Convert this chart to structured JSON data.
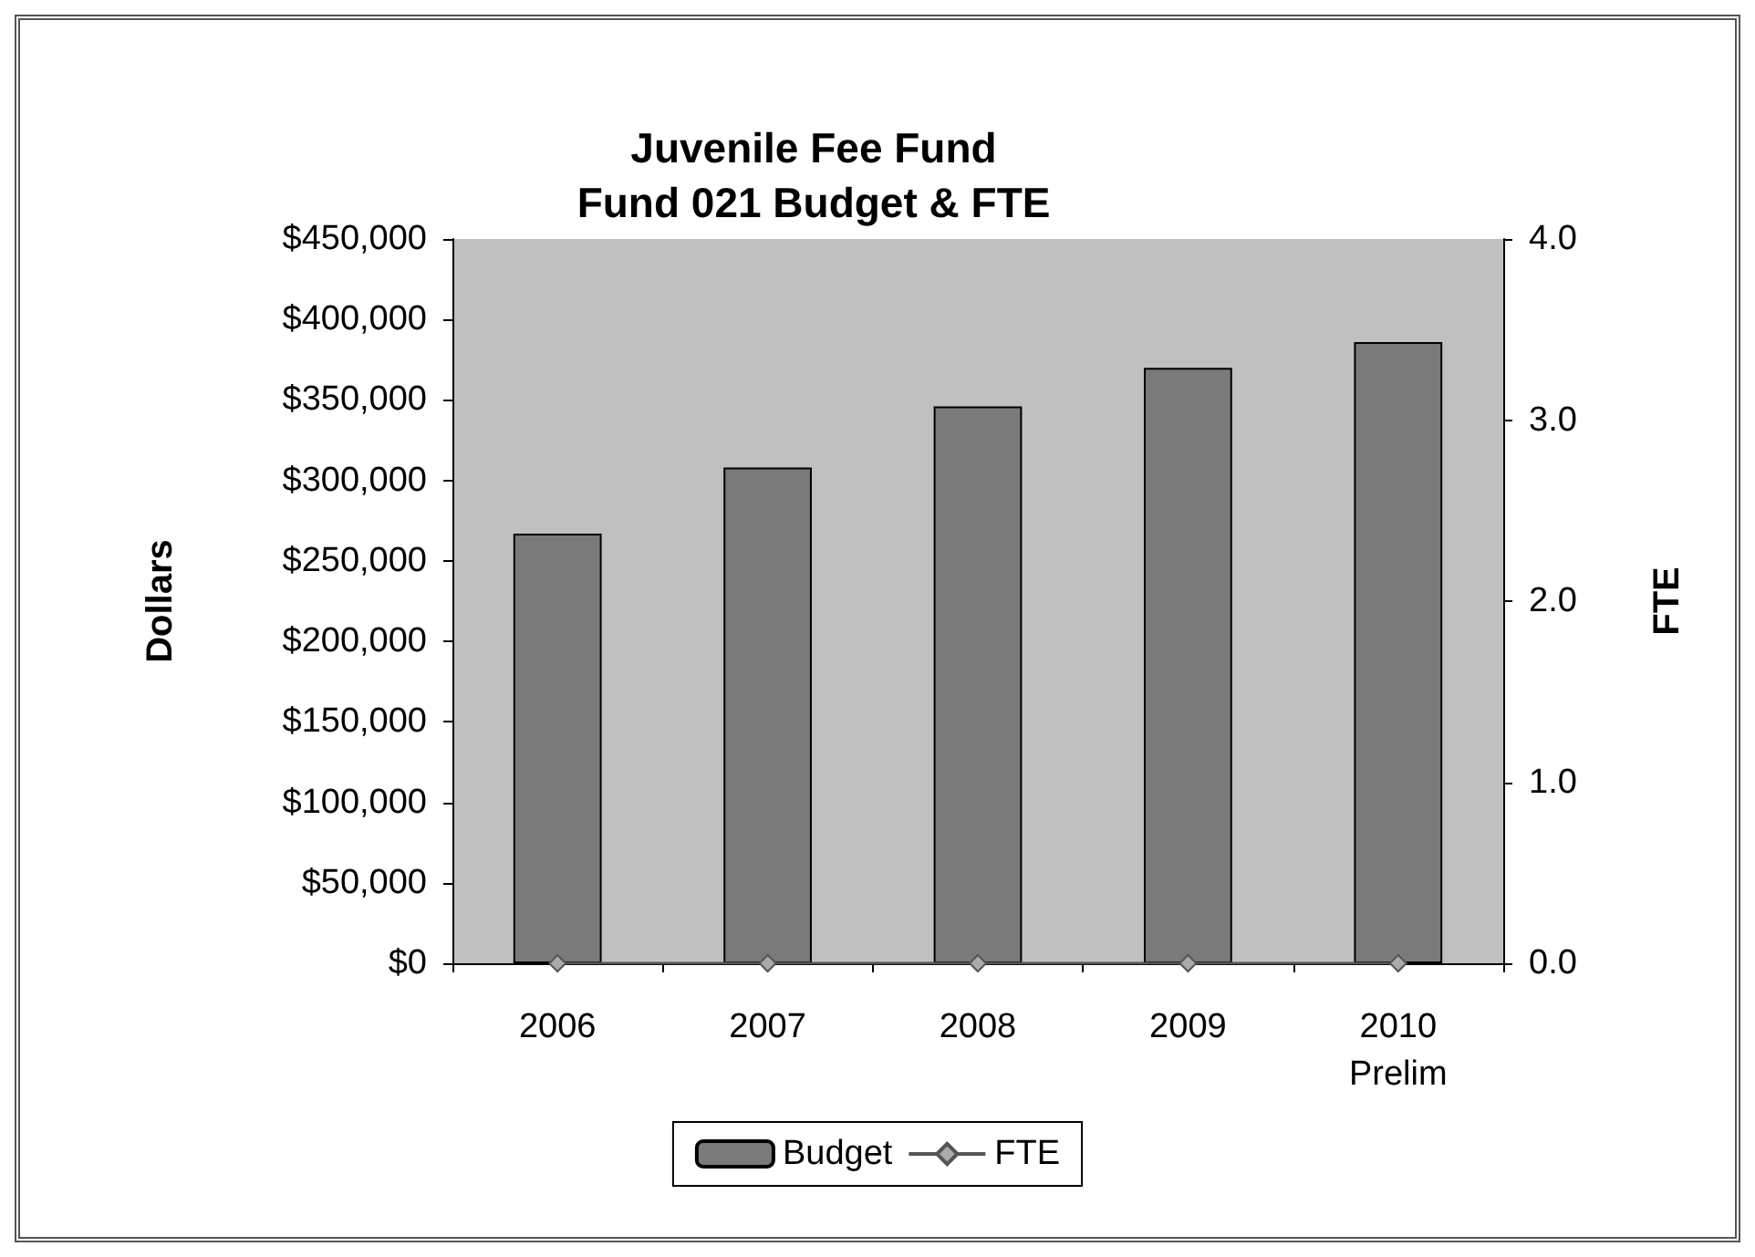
{
  "chart_data": {
    "type": "bar",
    "title": "Juvenile Fee Fund\nFund 021 Budget & FTE",
    "ylabel": "Dollars",
    "y2label": "FTE",
    "categories": [
      "2006",
      "2007",
      "2008",
      "2009",
      "2010\nPrelim"
    ],
    "series": [
      {
        "name": "Budget",
        "color": "#7a7a7a",
        "values": [
          267000,
          308000,
          346000,
          370000,
          386000
        ]
      },
      {
        "name": "FTE",
        "type": "line",
        "axis": "y2",
        "color": "#555555",
        "marker": "diamond",
        "values": [
          0,
          0,
          0,
          0,
          0
        ]
      }
    ],
    "ylim": [
      0,
      450000
    ],
    "yticks": [
      {
        "value": 0,
        "label": "$0"
      },
      {
        "value": 50000,
        "label": "$50,000"
      },
      {
        "value": 100000,
        "label": "$100,000"
      },
      {
        "value": 150000,
        "label": "$150,000"
      },
      {
        "value": 200000,
        "label": "$200,000"
      },
      {
        "value": 250000,
        "label": "$250,000"
      },
      {
        "value": 300000,
        "label": "$300,000"
      },
      {
        "value": 350000,
        "label": "$350,000"
      },
      {
        "value": 400000,
        "label": "$400,000"
      },
      {
        "value": 450000,
        "label": "$450,000"
      }
    ],
    "y2lim": [
      0,
      4
    ],
    "y2ticks": [
      {
        "value": 0,
        "label": "0.0"
      },
      {
        "value": 1,
        "label": "1.0"
      },
      {
        "value": 2,
        "label": "2.0"
      },
      {
        "value": 3,
        "label": "3.0"
      },
      {
        "value": 4,
        "label": "4.0"
      }
    ],
    "grid": false,
    "legend": "bottom"
  }
}
